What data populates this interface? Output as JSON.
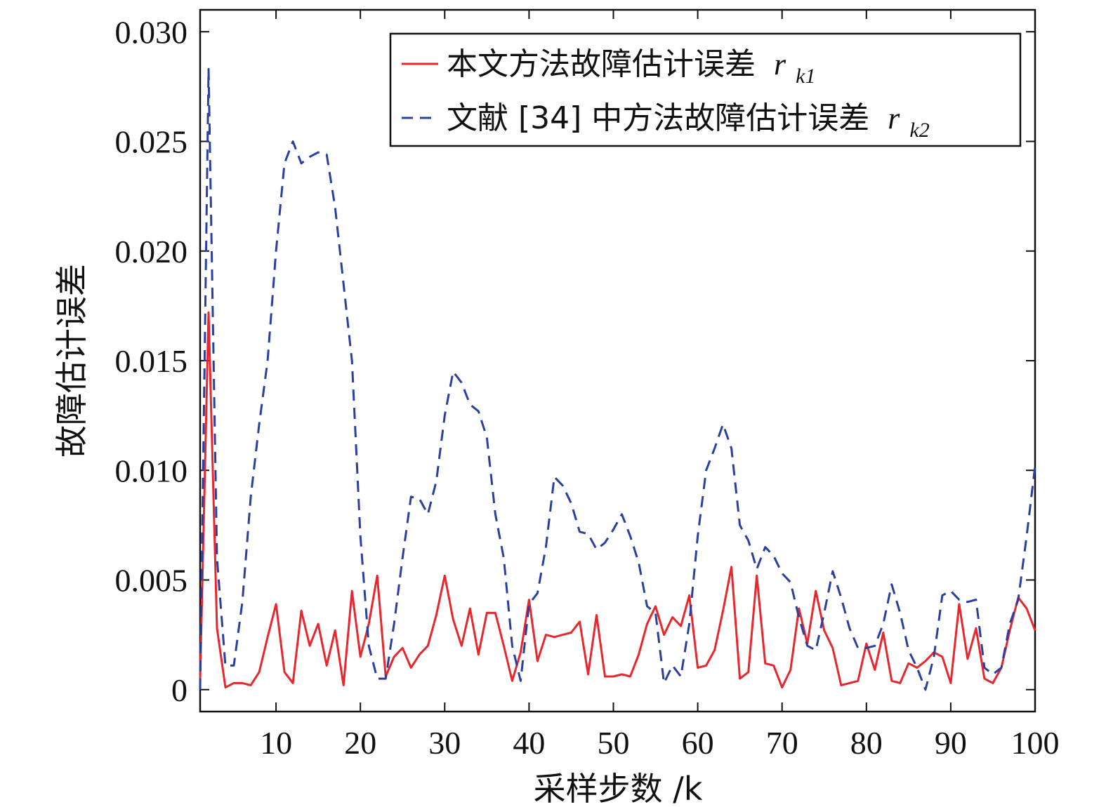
{
  "chart_data": {
    "type": "line",
    "xlabel": "采样步数 /k",
    "ylabel": "故障估计误差",
    "xlim": [
      1,
      100
    ],
    "ylim": [
      -0.001,
      0.031
    ],
    "xticks": [
      10,
      20,
      30,
      40,
      50,
      60,
      70,
      80,
      90,
      100
    ],
    "xtick_labels": [
      "10",
      "20",
      "30",
      "40",
      "50",
      "60",
      "70",
      "80",
      "90",
      "100"
    ],
    "yticks": [
      0,
      0.005,
      0.01,
      0.015,
      0.02,
      0.025,
      0.03
    ],
    "ytick_labels": [
      "0",
      "0.005",
      "0.010",
      "0.015",
      "0.020",
      "0.025",
      "0.030"
    ],
    "legend_position": "top-right",
    "series": [
      {
        "name": "本文方法故障估计误差 r_k1",
        "legend_text": "本文方法故障估计误差",
        "legend_symbol": "r",
        "legend_subscript": "k1",
        "color": "#e8262d",
        "style": "solid",
        "x": [
          1,
          2,
          3,
          4,
          5,
          6,
          7,
          8,
          9,
          10,
          11,
          12,
          13,
          14,
          15,
          16,
          17,
          18,
          19,
          20,
          21,
          22,
          23,
          24,
          25,
          26,
          27,
          28,
          29,
          30,
          31,
          32,
          33,
          34,
          35,
          36,
          37,
          38,
          39,
          40,
          41,
          42,
          43,
          44,
          45,
          46,
          47,
          48,
          49,
          50,
          51,
          52,
          53,
          54,
          55,
          56,
          57,
          58,
          59,
          60,
          61,
          62,
          63,
          64,
          65,
          66,
          67,
          68,
          69,
          70,
          71,
          72,
          73,
          74,
          75,
          76,
          77,
          78,
          79,
          80,
          81,
          82,
          83,
          84,
          85,
          86,
          87,
          88,
          89,
          90,
          91,
          92,
          93,
          94,
          95,
          96,
          97,
          98,
          99,
          100
        ],
        "values": [
          0.0005,
          0.0172,
          0.0028,
          0.0001,
          0.0003,
          0.0003,
          0.0002,
          0.0008,
          0.0024,
          0.0039,
          0.0008,
          0.0003,
          0.0036,
          0.002,
          0.003,
          0.0011,
          0.0027,
          0.0002,
          0.0045,
          0.0015,
          0.003,
          0.0052,
          0.0006,
          0.0015,
          0.0019,
          0.001,
          0.0016,
          0.002,
          0.0034,
          0.0052,
          0.0032,
          0.002,
          0.0037,
          0.0016,
          0.0035,
          0.0035,
          0.002,
          0.0004,
          0.0017,
          0.0041,
          0.0013,
          0.0025,
          0.0024,
          0.0025,
          0.0026,
          0.0031,
          0.0007,
          0.0034,
          0.0006,
          0.0006,
          0.0007,
          0.0006,
          0.0016,
          0.003,
          0.0038,
          0.0025,
          0.0033,
          0.0029,
          0.0043,
          0.001,
          0.0011,
          0.0018,
          0.0036,
          0.0056,
          0.0005,
          0.0008,
          0.0052,
          0.0012,
          0.0011,
          0.0001,
          0.0009,
          0.0037,
          0.0021,
          0.0045,
          0.0027,
          0.0019,
          0.0002,
          0.0003,
          0.0004,
          0.0021,
          0.0009,
          0.0026,
          0.0004,
          0.0003,
          0.0012,
          0.001,
          0.0013,
          0.0017,
          0.0015,
          0.0003,
          0.0039,
          0.0014,
          0.0028,
          0.0005,
          0.0003,
          0.001,
          0.0027,
          0.0042,
          0.0037,
          0.0027
        ]
      },
      {
        "name": "文献 [34] 中方法故障估计误差 r_k2",
        "legend_text": "文献 [34] 中方法故障估计误差",
        "legend_symbol": "r",
        "legend_subscript": "k2",
        "color": "#2b3fa0",
        "style": "dashed",
        "x": [
          1,
          2,
          3,
          4,
          5,
          6,
          7,
          8,
          9,
          10,
          11,
          12,
          13,
          14,
          15,
          16,
          17,
          18,
          19,
          20,
          21,
          22,
          23,
          24,
          25,
          26,
          27,
          28,
          29,
          30,
          31,
          32,
          33,
          34,
          35,
          36,
          37,
          38,
          39,
          40,
          41,
          42,
          43,
          44,
          45,
          46,
          47,
          48,
          49,
          50,
          51,
          52,
          53,
          54,
          55,
          56,
          57,
          58,
          59,
          60,
          61,
          62,
          63,
          64,
          65,
          66,
          67,
          68,
          69,
          70,
          71,
          72,
          73,
          74,
          75,
          76,
          77,
          78,
          79,
          80,
          81,
          82,
          83,
          84,
          85,
          86,
          87,
          88,
          89,
          90,
          91,
          92,
          93,
          94,
          95,
          96,
          97,
          98,
          99,
          100
        ],
        "values": [
          0.0,
          0.0283,
          0.006,
          0.0011,
          0.0011,
          0.004,
          0.0088,
          0.0121,
          0.015,
          0.02,
          0.024,
          0.025,
          0.024,
          0.0243,
          0.0245,
          0.0244,
          0.022,
          0.0185,
          0.015,
          0.007,
          0.002,
          0.0005,
          0.0005,
          0.003,
          0.006,
          0.0088,
          0.0087,
          0.008,
          0.0095,
          0.0125,
          0.0145,
          0.014,
          0.013,
          0.0127,
          0.0115,
          0.008,
          0.006,
          0.002,
          0.0004,
          0.0039,
          0.0044,
          0.0065,
          0.0097,
          0.0093,
          0.0085,
          0.0072,
          0.0071,
          0.0064,
          0.0067,
          0.0073,
          0.008,
          0.007,
          0.0058,
          0.0038,
          0.0035,
          0.0003,
          0.0011,
          0.0006,
          0.003,
          0.007,
          0.01,
          0.011,
          0.0121,
          0.011,
          0.0075,
          0.0068,
          0.0055,
          0.0065,
          0.0061,
          0.0053,
          0.0049,
          0.0033,
          0.002,
          0.0018,
          0.0035,
          0.0054,
          0.0042,
          0.0028,
          0.0019,
          0.0019,
          0.002,
          0.003,
          0.0048,
          0.0035,
          0.0018,
          0.001,
          0.0,
          0.0015,
          0.0043,
          0.0045,
          0.0041,
          0.004,
          0.0041,
          0.001,
          0.0007,
          0.001,
          0.003,
          0.0041,
          0.007,
          0.0102
        ]
      }
    ]
  }
}
